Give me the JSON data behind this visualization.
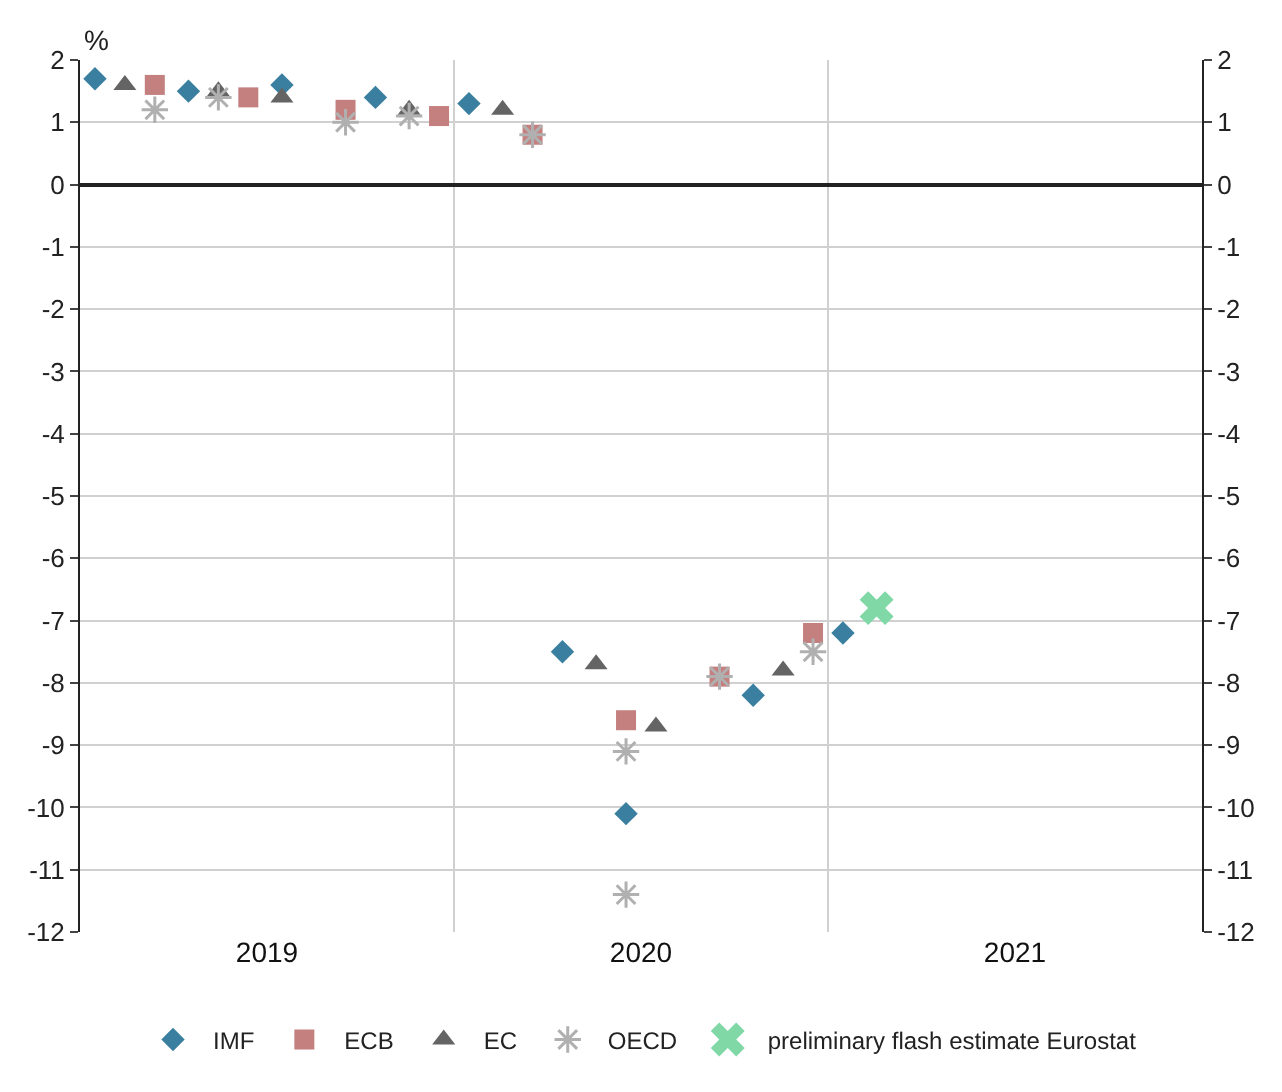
{
  "chart_data": {
    "type": "scatter",
    "ylabel": "%",
    "xlim": [
      2019,
      2022
    ],
    "xticks": [
      {
        "value": 2019.5,
        "label": "2019"
      },
      {
        "value": 2020.5,
        "label": "2020"
      },
      {
        "value": 2021.5,
        "label": "2021"
      }
    ],
    "ylim": [
      -12,
      2
    ],
    "yticks": [
      -12,
      -11,
      -10,
      -9,
      -8,
      -7,
      -6,
      -5,
      -4,
      -3,
      -2,
      -1,
      0,
      1,
      2
    ],
    "y2lim": [
      -12,
      2
    ],
    "y2ticks": [
      -12,
      -11,
      -10,
      -9,
      -8,
      -7,
      -6,
      -5,
      -4,
      -3,
      -2,
      -1,
      0,
      1,
      2
    ],
    "grid": "y",
    "legend": "bottom",
    "ref_lines": [
      {
        "axis": "x",
        "value": 2020,
        "label": null,
        "color": "#d0d0d0"
      },
      {
        "axis": "x",
        "value": 2021,
        "label": null,
        "color": "#d0d0d0"
      }
    ],
    "series": [
      {
        "name": "IMF",
        "color": "#3a7fa0",
        "marker": "diamond",
        "x": [
          2019.04,
          2019.29,
          2019.54,
          2019.79,
          2020.04,
          2020.29,
          2020.46,
          2020.8,
          2021.04
        ],
        "values": [
          1.7,
          1.5,
          1.6,
          1.4,
          1.3,
          -7.5,
          -10.1,
          -8.2,
          -7.2
        ]
      },
      {
        "name": "ECB",
        "color": "#c47f7f",
        "marker": "square",
        "x": [
          2019.2,
          2019.45,
          2019.71,
          2019.96,
          2020.21,
          2020.46,
          2020.71,
          2020.96
        ],
        "values": [
          1.6,
          1.4,
          1.2,
          1.1,
          0.8,
          -8.6,
          -7.9,
          -7.2
        ]
      },
      {
        "name": "EC",
        "color": "#646464",
        "marker": "triangle",
        "x": [
          2019.12,
          2019.37,
          2019.54,
          2019.88,
          2020.13,
          2020.38,
          2020.54,
          2020.88
        ],
        "values": [
          1.6,
          1.5,
          1.4,
          1.2,
          1.2,
          -7.7,
          -8.7,
          -7.8
        ]
      },
      {
        "name": "OECD",
        "color": "#b0b0b0",
        "marker": "cross",
        "x": [
          2019.2,
          2019.37,
          2019.71,
          2019.88,
          2020.21,
          2020.46,
          2020.46,
          2020.71,
          2020.96
        ],
        "values": [
          1.2,
          1.4,
          1.0,
          1.1,
          0.8,
          -9.1,
          -11.4,
          -7.9,
          -7.5
        ]
      },
      {
        "name": "preliminary flash estimate Eurostat",
        "color": "#7fd8a6",
        "x": [
          2021.13
        ],
        "values": [
          -6.8
        ]
      }
    ]
  }
}
